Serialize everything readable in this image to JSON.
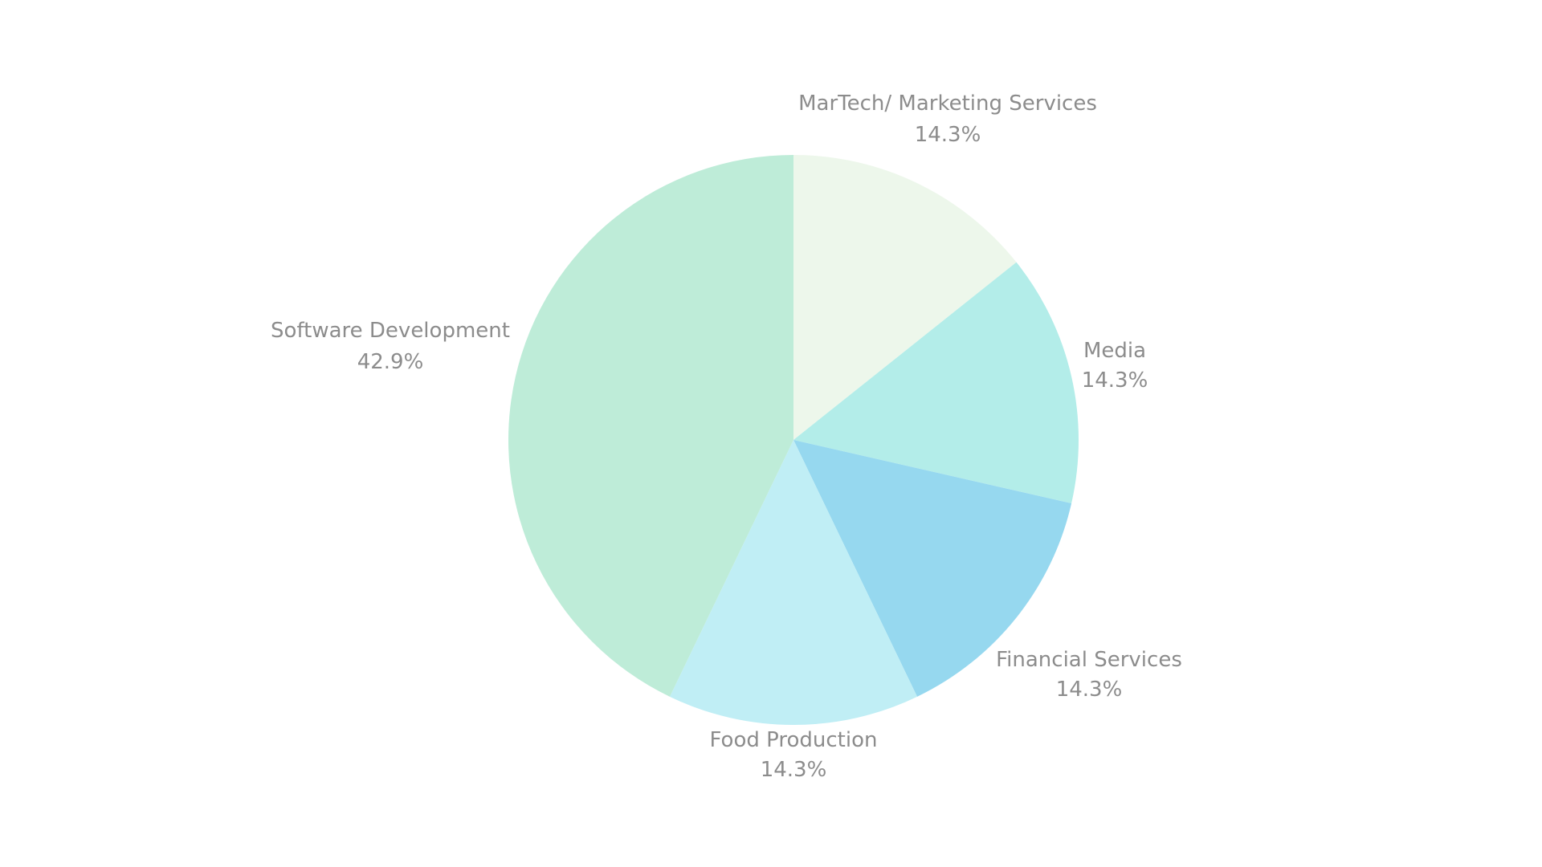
{
  "chart_data": {
    "type": "pie",
    "title": "",
    "start_angle": "12 o'clock",
    "direction": "clockwise",
    "slices": [
      {
        "label": "MarTech/ Marketing Services",
        "percent_label": "14.3%",
        "value": 14.3,
        "color": "#edf7eb"
      },
      {
        "label": "Media",
        "percent_label": "14.3%",
        "value": 14.3,
        "color": "#b3ede9"
      },
      {
        "label": "Financial Services",
        "percent_label": "14.3%",
        "value": 14.3,
        "color": "#96d8ef"
      },
      {
        "label": "Food Production",
        "percent_label": "14.3%",
        "value": 14.3,
        "color": "#c0eef5"
      },
      {
        "label": "Software Development",
        "percent_label": "42.9%",
        "value": 42.9,
        "color": "#beecd8"
      }
    ]
  }
}
